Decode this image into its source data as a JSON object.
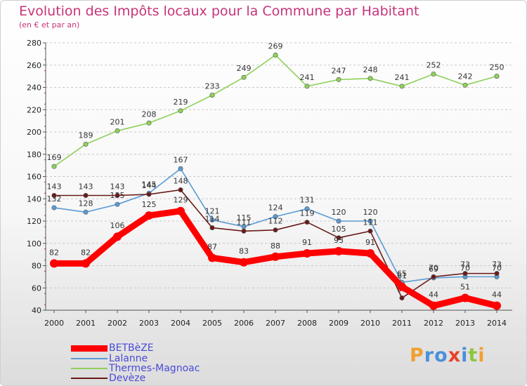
{
  "title": "Evolution des Impôts locaux pour la Commune par Habitant",
  "subtitle": "(en € et par an)",
  "logo": "Proxiti",
  "colors": {
    "title": "#c6337a",
    "legend_text": "#4a4ad8",
    "axis": "#555555",
    "grid": "#c8c8c8",
    "tick_mark": "#c2185b"
  },
  "chart_data": {
    "type": "line",
    "x": [
      "2000",
      "2001",
      "2002",
      "2003",
      "2004",
      "2005",
      "2006",
      "2007",
      "2008",
      "2009",
      "2010",
      "2011",
      "2012",
      "2013",
      "2014"
    ],
    "ylim": [
      40,
      280
    ],
    "yticks": [
      40,
      60,
      80,
      100,
      120,
      140,
      160,
      180,
      200,
      220,
      240,
      260,
      280
    ],
    "grid": "horizontal dashed",
    "legend_position": "bottom-left",
    "series": [
      {
        "name": "Thermes-Magnoac",
        "color": "#8fd05a",
        "values": [
          169,
          189,
          201,
          208,
          219,
          233,
          249,
          269,
          241,
          247,
          248,
          241,
          252,
          242,
          250
        ],
        "labels": [
          "169",
          "189",
          "201",
          "208",
          "219",
          "233",
          "249",
          "269",
          "241",
          "247",
          "248",
          "241",
          "252",
          "242",
          "250"
        ]
      },
      {
        "name": "Lalanne",
        "color": "#5b9bd5",
        "values": [
          132,
          128,
          135,
          145,
          167,
          121,
          115,
          124,
          131,
          120,
          120,
          65,
          69,
          70,
          70
        ],
        "labels": [
          "132",
          "",
          "135",
          "145",
          "167",
          "121",
          "115",
          "124",
          "131",
          "120",
          "120",
          "65",
          "69",
          "70",
          "70"
        ]
      },
      {
        "name": "Devèze",
        "color": "#6b1a1a",
        "values": [
          143,
          143,
          143,
          144,
          148,
          114,
          111,
          112,
          119,
          105,
          111,
          51,
          70,
          73,
          73
        ],
        "labels": [
          "143",
          "143",
          "143",
          "144",
          "148",
          "114",
          "111",
          "112",
          "119",
          "105",
          "111",
          "51",
          "70",
          "73",
          "73"
        ]
      },
      {
        "name": "BETBèZE",
        "color": "#ff0000",
        "values": [
          82,
          82,
          106,
          125,
          129,
          87,
          83,
          88,
          91,
          93,
          91,
          61,
          44,
          51,
          44
        ],
        "labels": [
          "82",
          "82",
          "106",
          "125",
          "129",
          "87",
          "83",
          "88",
          "91",
          "93",
          "91",
          "61",
          "44",
          "51",
          "44"
        ]
      }
    ],
    "extra_labels": [
      "128"
    ]
  },
  "legend": [
    {
      "label": "BETBèZE",
      "color": "#ff0000",
      "thickness": 10
    },
    {
      "label": "Lalanne",
      "color": "#5b9bd5",
      "thickness": 2
    },
    {
      "label": "Thermes-Magnoac",
      "color": "#8fd05a",
      "thickness": 2
    },
    {
      "label": "Devèze",
      "color": "#6b1a1a",
      "thickness": 2
    }
  ]
}
